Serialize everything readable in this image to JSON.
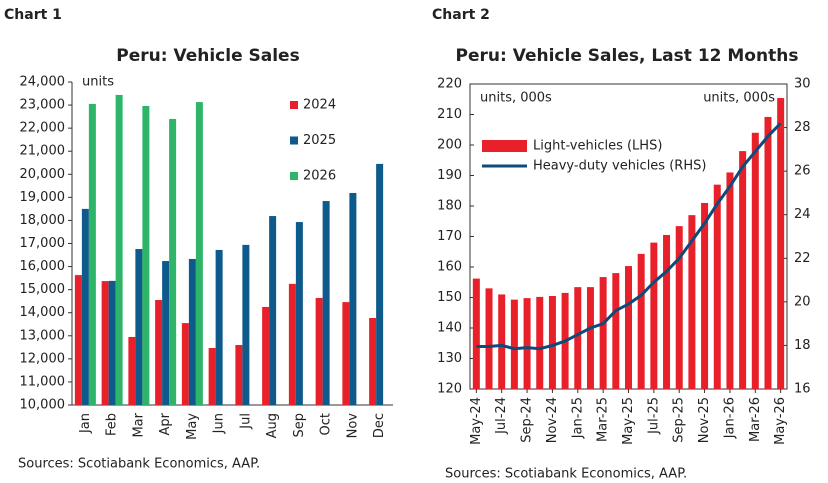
{
  "chart_data": [
    {
      "type": "bar",
      "label": "Chart 1",
      "title": "Peru: Vehicle Sales",
      "annotation": "units",
      "source": "Sources: Scotiabank Economics, AAP.",
      "categories": [
        "Jan",
        "Feb",
        "Mar",
        "Apr",
        "May",
        "Jun",
        "Jul",
        "Aug",
        "Sep",
        "Oct",
        "Nov",
        "Dec"
      ],
      "series": [
        {
          "name": "2024",
          "color": "#e8202a",
          "values": [
            15630,
            15370,
            12950,
            14550,
            13550,
            12470,
            12600,
            14250,
            15250,
            14640,
            14460,
            13770
          ]
        },
        {
          "name": "2025",
          "color": "#0e5a8a",
          "values": [
            18500,
            15380,
            16760,
            16240,
            16330,
            16720,
            16940,
            18190,
            17930,
            18840,
            19190,
            20450
          ]
        },
        {
          "name": "2026",
          "color": "#2fb56a",
          "values": [
            23050,
            23440,
            22960,
            22400,
            23130,
            null,
            null,
            null,
            null,
            null,
            null,
            null
          ]
        }
      ],
      "ylim": [
        10000,
        24000
      ],
      "yticks": [
        {
          "value": 10000,
          "label": "10,000"
        },
        {
          "value": 11000,
          "label": "11,000"
        },
        {
          "value": 12000,
          "label": "12,000"
        },
        {
          "value": 13000,
          "label": "13,000"
        },
        {
          "value": 14000,
          "label": "14,000"
        },
        {
          "value": 15000,
          "label": "15,000"
        },
        {
          "value": 16000,
          "label": "16,000"
        },
        {
          "value": 17000,
          "label": "17,000"
        },
        {
          "value": 18000,
          "label": "18,000"
        },
        {
          "value": 19000,
          "label": "19,000"
        },
        {
          "value": 20000,
          "label": "20,000"
        },
        {
          "value": 21000,
          "label": "21,000"
        },
        {
          "value": 22000,
          "label": "22,000"
        },
        {
          "value": 23000,
          "label": "23,000"
        },
        {
          "value": 24000,
          "label": "24,000"
        }
      ],
      "legend": "right"
    },
    {
      "type": "combo",
      "label": "Chart 2",
      "title": "Peru: Vehicle Sales, Last 12 Months",
      "annotation": "units, 000s",
      "annotation_right": "units, 000s",
      "source": "Sources: Scotiabank Economics, AAP.",
      "categories": [
        "May-24",
        null,
        "Jul-24",
        null,
        "Sep-24",
        null,
        "Nov-24",
        null,
        "Jan-25",
        null,
        "Mar-25",
        null,
        "May-25",
        null,
        "Jul-25",
        null,
        "Sep-25",
        null,
        "Nov-25",
        null,
        "Jan-26",
        null,
        "Mar-26",
        null,
        "May-26"
      ],
      "series": [
        {
          "name": "Light-vehicles (LHS)",
          "color": "#e8202a",
          "type": "bar",
          "values": [
            156.2,
            153,
            151,
            149.3,
            149.8,
            150.2,
            150.5,
            151.5,
            153.4,
            153.4,
            156.7,
            158,
            160.3,
            164.3,
            168,
            170.5,
            173.4,
            177,
            181,
            187,
            191,
            198,
            204,
            209.2,
            215.4
          ]
        },
        {
          "name": "Heavy-duty vehicles (RHS)",
          "color": "#0e4a7a",
          "type": "line",
          "axis": "y2",
          "values": [
            17.95,
            17.95,
            18.0,
            17.85,
            17.9,
            17.85,
            18.0,
            18.2,
            18.5,
            18.8,
            19.0,
            19.6,
            19.9,
            20.3,
            20.9,
            21.4,
            22.0,
            22.8,
            23.6,
            24.5,
            25.3,
            26.2,
            26.9,
            27.6,
            28.2
          ]
        }
      ],
      "ylim": [
        120,
        220
      ],
      "yticks": [
        120,
        130,
        140,
        150,
        160,
        170,
        180,
        190,
        200,
        210,
        220
      ],
      "y2lim": [
        16,
        30
      ],
      "y2ticks": [
        16,
        18,
        20,
        22,
        24,
        26,
        28,
        30
      ],
      "legend": "upper left"
    }
  ]
}
